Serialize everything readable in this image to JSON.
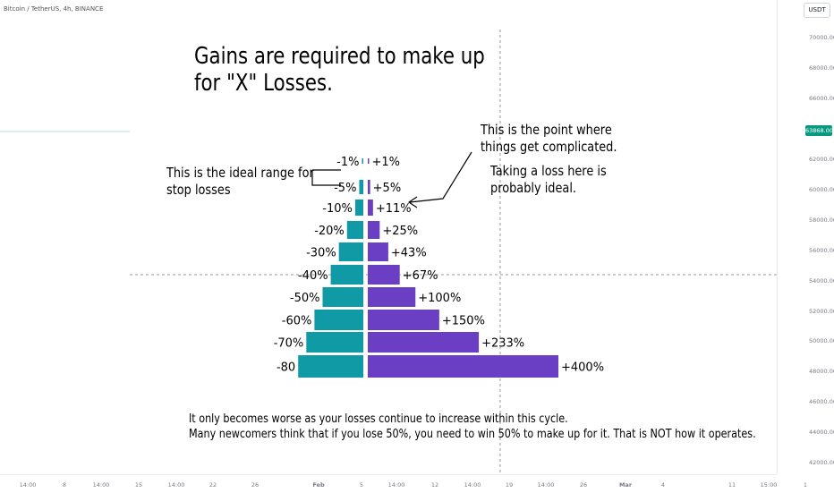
{
  "header": {
    "symbol": "Bitcoin / TetherUS, 4h, BINANCE",
    "currency": "USDT"
  },
  "y_axis": {
    "ticks": [
      "70000.00",
      "68000.00",
      "66000.00",
      "62000.00",
      "60000.00",
      "58000.00",
      "56000.00",
      "54000.00",
      "52000.00",
      "50000.00",
      "48000.00",
      "46000.00",
      "44000.00",
      "42000.00"
    ],
    "price_tag": "63868.00"
  },
  "x_axis": {
    "ticks": [
      "14:00",
      "8",
      "14:00",
      "15",
      "14:00",
      "22",
      "26",
      "Feb",
      "5",
      "14:00",
      "12",
      "14:00",
      "19",
      "14:00",
      "26",
      "Mar",
      "4",
      "11",
      "15:00",
      "1"
    ]
  },
  "title": {
    "line1": "Gains are required to make up",
    "line2": "for \"X\" Losses."
  },
  "notes": {
    "ideal_range_line1": "This is the ideal range for",
    "ideal_range_line2": "stop losses",
    "complicated_line1": "This is the point where",
    "complicated_line2": "things get complicated.",
    "taking_loss_line1": "Taking a loss here is",
    "taking_loss_line2": "probably ideal."
  },
  "footer": {
    "line1": "It only becomes worse as your losses continue to increase within this cycle.",
    "line2": "Many newcomers think that if you lose 50%, you need to win 50% to make up for it. That is NOT how it operates."
  },
  "colors": {
    "loss": "#0f9aa6",
    "gain": "#6b3fc4",
    "price": "#089981"
  },
  "chart_data": {
    "type": "bar",
    "categories": [
      "-1%",
      "-5%",
      "-10%",
      "-20%",
      "-30%",
      "-40%",
      "-50%",
      "-60%",
      "-70%",
      "-80"
    ],
    "series": [
      {
        "values": [
          1,
          5,
          10,
          20,
          30,
          40,
          50,
          60,
          70,
          80
        ],
        "labels": [
          "-1%",
          "-5%",
          "-10%",
          "-20%",
          "-30%",
          "-40%",
          "-50%",
          "-60%",
          "-70%",
          "-80"
        ]
      },
      {
        "values": [
          1,
          5,
          11,
          25,
          43,
          67,
          100,
          150,
          233,
          400
        ],
        "labels": [
          "+1%",
          "+5%",
          "+11%",
          "+25%",
          "+43%",
          "+67%",
          "+100%",
          "+150%",
          "+233%",
          "+400%"
        ]
      }
    ]
  }
}
